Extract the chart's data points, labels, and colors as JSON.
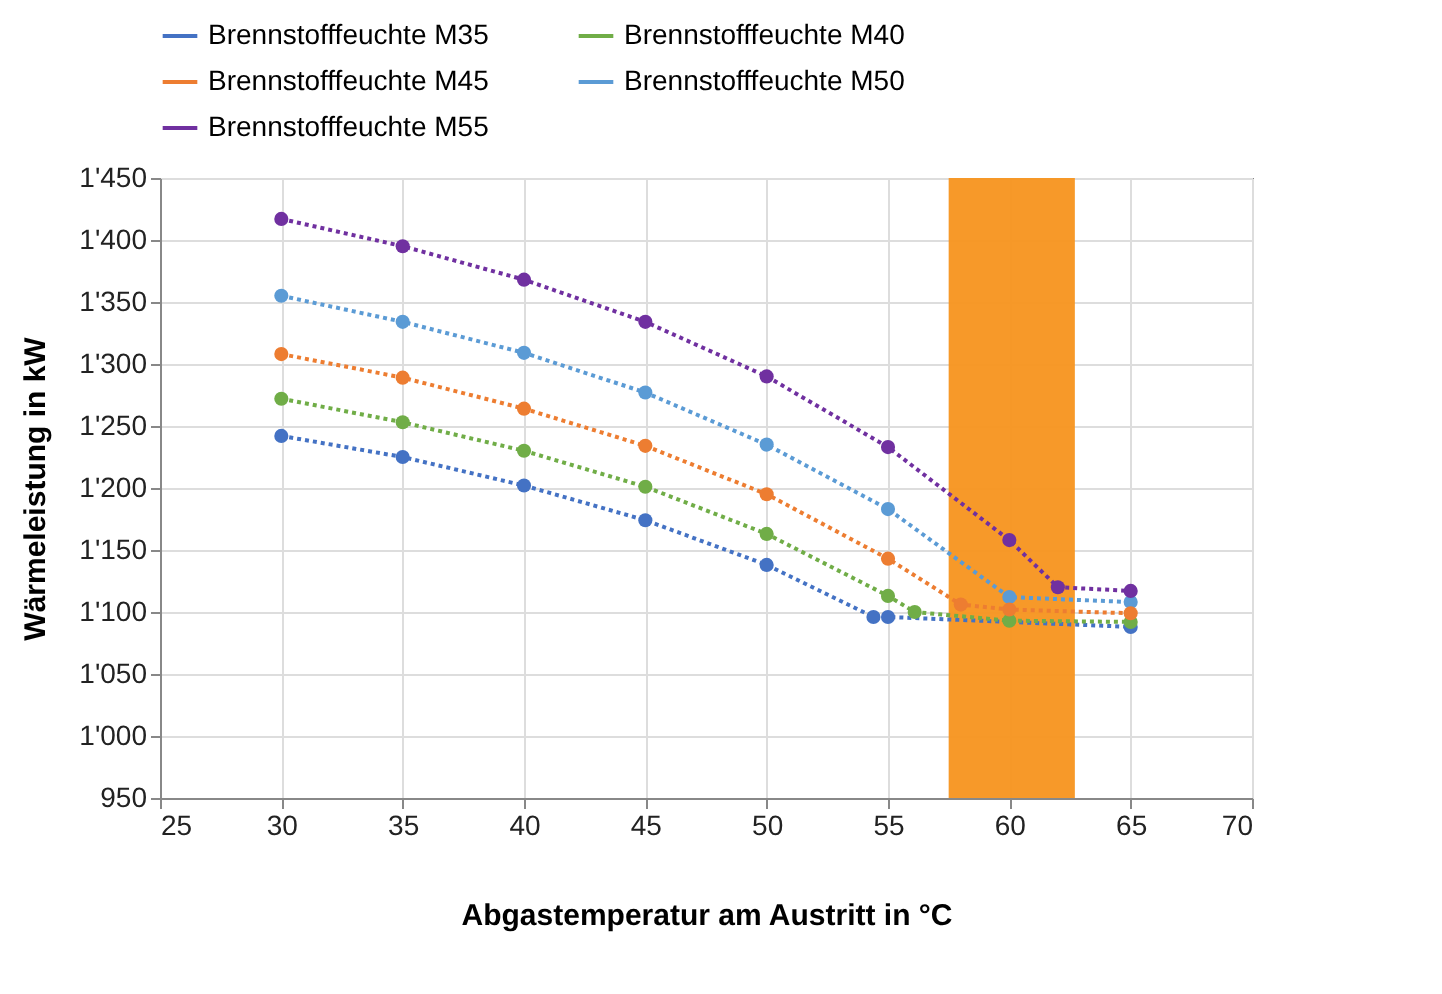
{
  "chart_data": {
    "type": "line",
    "xlabel": "Abgastemperatur am Austritt in °C",
    "ylabel": "Wärmeleistung in kW",
    "xlim": [
      25,
      70
    ],
    "xticks": [
      25,
      30,
      35,
      40,
      45,
      50,
      55,
      60,
      65,
      70
    ],
    "ylim": [
      950,
      1450
    ],
    "yticks": [
      {
        "value": 950,
        "label": "950"
      },
      {
        "value": 1000,
        "label": "1'000"
      },
      {
        "value": 1050,
        "label": "1'050"
      },
      {
        "value": 1100,
        "label": "1'100"
      },
      {
        "value": 1150,
        "label": "1'150"
      },
      {
        "value": 1200,
        "label": "1'200"
      },
      {
        "value": 1250,
        "label": "1'250"
      },
      {
        "value": 1300,
        "label": "1'300"
      },
      {
        "value": 1350,
        "label": "1'350"
      },
      {
        "value": 1400,
        "label": "1'400"
      },
      {
        "value": 1450,
        "label": "1'450"
      }
    ],
    "grid": true,
    "legend": "top",
    "marker": "circle",
    "line_style": "dotted",
    "bands": [
      {
        "axis": "x",
        "from": 57.5,
        "to": 62.7,
        "color": "#f7941d"
      }
    ],
    "series": [
      {
        "name": "Brennstofffeuchte M35",
        "color": "#4472c4",
        "x": [
          30,
          35,
          40,
          45,
          50,
          54.4,
          55,
          65
        ],
        "values": [
          1242,
          1225,
          1202,
          1174,
          1138,
          1096,
          1096,
          1088
        ]
      },
      {
        "name": "Brennstofffeuchte M40",
        "color": "#70ad47",
        "x": [
          30,
          35,
          40,
          45,
          50,
          55,
          56.1,
          60,
          65
        ],
        "values": [
          1272,
          1253,
          1230,
          1201,
          1163,
          1113,
          1100,
          1093,
          1092
        ]
      },
      {
        "name": "Brennstofffeuchte M45",
        "color": "#ed7d31",
        "x": [
          30,
          35,
          40,
          45,
          50,
          55,
          58,
          60,
          65
        ],
        "values": [
          1308,
          1289,
          1264,
          1234,
          1195,
          1143,
          1106,
          1102,
          1099
        ]
      },
      {
        "name": "Brennstofffeuchte M50",
        "color": "#5b9bd5",
        "x": [
          30,
          35,
          40,
          45,
          50,
          55,
          60,
          65
        ],
        "values": [
          1355,
          1334,
          1309,
          1277,
          1235,
          1183,
          1112,
          1108
        ]
      },
      {
        "name": "Brennstofffeuchte M55",
        "color": "#7030a0",
        "x": [
          30,
          35,
          40,
          45,
          50,
          55,
          60,
          62,
          65
        ],
        "values": [
          1417,
          1395,
          1368,
          1334,
          1290,
          1233,
          1158,
          1120,
          1117
        ]
      }
    ]
  }
}
